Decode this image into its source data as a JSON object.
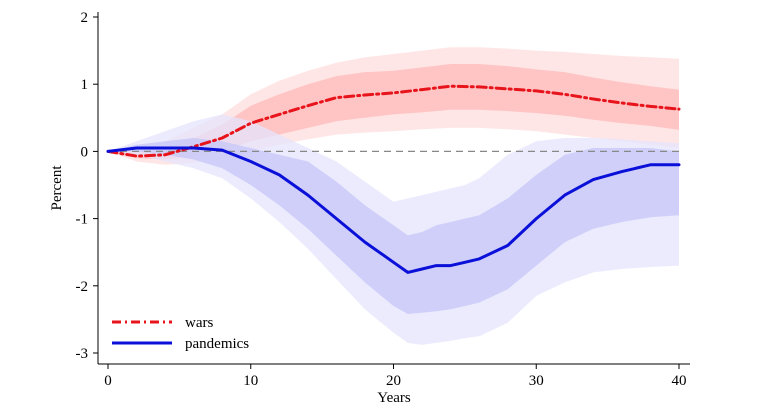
{
  "chart_data": {
    "type": "line",
    "title": "",
    "xlabel": "Years",
    "ylabel": "Percent",
    "xlim": [
      0,
      40
    ],
    "ylim": [
      -3,
      2
    ],
    "xticks": [
      0,
      10,
      20,
      30,
      40
    ],
    "yticks": [
      -3,
      -2,
      -1,
      0,
      1,
      2
    ],
    "xtick_labels": [
      "0",
      "10",
      "20",
      "30",
      "40"
    ],
    "ytick_labels": [
      "-3",
      "-2",
      "-1",
      "0",
      "1",
      "2"
    ],
    "reference_line": 0,
    "legend_position": "bottom-left",
    "series": [
      {
        "name": "wars",
        "color": "#e8141b",
        "band_outer_color": "#ffdede",
        "band_inner_color": "#ffbaba",
        "style": "dash-dot",
        "x": [
          0,
          2,
          4,
          6,
          8,
          10,
          12,
          14,
          16,
          18,
          20,
          22,
          24,
          26,
          28,
          30,
          32,
          34,
          36,
          38,
          40
        ],
        "values": [
          0.0,
          -0.07,
          -0.05,
          0.07,
          0.2,
          0.42,
          0.55,
          0.68,
          0.8,
          0.84,
          0.87,
          0.92,
          0.97,
          0.96,
          0.93,
          0.9,
          0.85,
          0.78,
          0.72,
          0.67,
          0.63
        ],
        "inner_lower": [
          0.0,
          -0.1,
          -0.12,
          -0.07,
          0.0,
          0.15,
          0.25,
          0.35,
          0.45,
          0.5,
          0.55,
          0.58,
          0.62,
          0.62,
          0.6,
          0.57,
          0.53,
          0.47,
          0.42,
          0.38,
          0.32
        ],
        "inner_upper": [
          0.0,
          0.0,
          0.05,
          0.2,
          0.4,
          0.68,
          0.85,
          1.0,
          1.12,
          1.18,
          1.2,
          1.25,
          1.3,
          1.3,
          1.27,
          1.22,
          1.18,
          1.1,
          1.03,
          0.97,
          0.92
        ],
        "outer_lower": [
          0.0,
          -0.15,
          -0.2,
          -0.17,
          -0.12,
          0.0,
          0.1,
          0.18,
          0.25,
          0.28,
          0.3,
          0.33,
          0.35,
          0.35,
          0.33,
          0.3,
          0.25,
          0.2,
          0.15,
          0.1,
          0.05
        ],
        "outer_upper": [
          0.0,
          0.05,
          0.15,
          0.35,
          0.55,
          0.85,
          1.05,
          1.2,
          1.32,
          1.4,
          1.45,
          1.5,
          1.55,
          1.55,
          1.53,
          1.5,
          1.48,
          1.45,
          1.42,
          1.4,
          1.38
        ]
      },
      {
        "name": "pandemics",
        "color": "#0a10d8",
        "band_outer_color": "#e4e4fc",
        "band_inner_color": "#c6c6f8",
        "style": "solid",
        "x": [
          0,
          2,
          4,
          6,
          8,
          10,
          12,
          14,
          16,
          18,
          20,
          21,
          22,
          23,
          24,
          25,
          26,
          28,
          30,
          32,
          34,
          36,
          38,
          40
        ],
        "values": [
          0.0,
          0.05,
          0.05,
          0.05,
          0.02,
          -0.15,
          -0.35,
          -0.65,
          -1.0,
          -1.35,
          -1.65,
          -1.8,
          -1.75,
          -1.7,
          -1.7,
          -1.65,
          -1.6,
          -1.4,
          -1.0,
          -0.65,
          -0.42,
          -0.3,
          -0.2,
          -0.2
        ],
        "inner_lower": [
          0.0,
          0.0,
          -0.05,
          -0.12,
          -0.25,
          -0.5,
          -0.8,
          -1.15,
          -1.55,
          -1.95,
          -2.3,
          -2.42,
          -2.4,
          -2.38,
          -2.35,
          -2.3,
          -2.25,
          -2.05,
          -1.7,
          -1.35,
          -1.15,
          -1.05,
          -0.98,
          -0.95
        ],
        "inner_upper": [
          0.0,
          0.1,
          0.15,
          0.2,
          0.15,
          0.05,
          -0.05,
          -0.15,
          -0.45,
          -0.8,
          -1.1,
          -1.25,
          -1.2,
          -1.1,
          -1.05,
          -1.0,
          -0.95,
          -0.7,
          -0.35,
          -0.05,
          0.05,
          0.05,
          0.05,
          0.0
        ],
        "outer_lower": [
          0.0,
          -0.05,
          -0.15,
          -0.25,
          -0.4,
          -0.7,
          -1.05,
          -1.45,
          -1.9,
          -2.35,
          -2.7,
          -2.85,
          -2.88,
          -2.85,
          -2.82,
          -2.78,
          -2.75,
          -2.55,
          -2.15,
          -1.95,
          -1.8,
          -1.75,
          -1.72,
          -1.7
        ],
        "outer_upper": [
          0.0,
          0.15,
          0.3,
          0.45,
          0.55,
          0.45,
          0.25,
          0.05,
          -0.15,
          -0.45,
          -0.75,
          -0.7,
          -0.65,
          -0.6,
          -0.55,
          -0.5,
          -0.4,
          -0.05,
          0.15,
          0.2,
          0.2,
          0.18,
          0.15,
          0.12
        ]
      }
    ]
  }
}
